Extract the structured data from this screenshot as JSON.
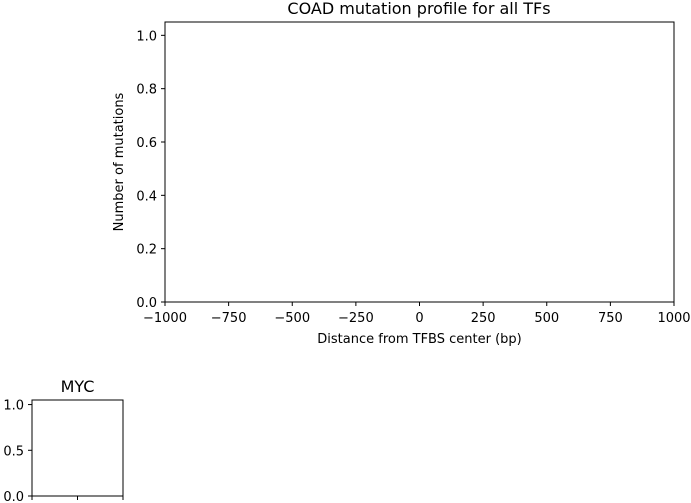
{
  "chart_data": [
    {
      "type": "line",
      "title": "COAD mutation profile for all TFs",
      "xlabel": "Distance from TFBS center (bp)",
      "ylabel": "Number of mutations",
      "xlim": [
        -1000,
        1000
      ],
      "ylim": [
        0,
        1.05
      ],
      "xticks": [
        -1000,
        -750,
        -500,
        -250,
        0,
        250,
        500,
        750,
        1000
      ],
      "xtick_labels": [
        "−1000",
        "−750",
        "−500",
        "−250",
        "0",
        "250",
        "500",
        "750",
        "1000"
      ],
      "yticks": [
        0.0,
        0.2,
        0.4,
        0.6,
        0.8,
        1.0
      ],
      "ytick_labels": [
        "0.0",
        "0.2",
        "0.4",
        "0.6",
        "0.8",
        "1.0"
      ],
      "series": [],
      "grid": false,
      "legend": "none"
    },
    {
      "type": "line",
      "title": "MYC",
      "xlabel": "",
      "ylabel": "",
      "ylim": [
        0,
        1.05
      ],
      "yticks": [
        0.0,
        0.5,
        1.0
      ],
      "ytick_labels": [
        "0.0",
        "0.5",
        "1.0"
      ],
      "series": [],
      "grid": false,
      "legend": "none"
    }
  ]
}
